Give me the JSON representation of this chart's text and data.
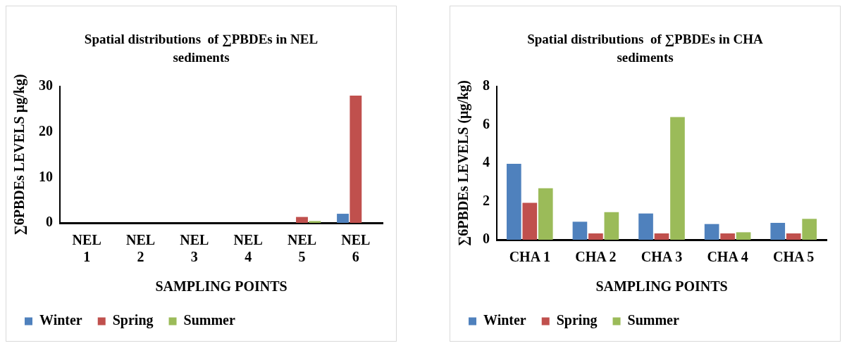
{
  "chart_data": [
    {
      "type": "bar",
      "title": "Spatial distributions  of ∑PBDEs in NEL sediments",
      "xlabel": "SAMPLING POINTS",
      "ylabel": "∑6PBDEs LEVELS µg/kg)",
      "categories": [
        "NEL 1",
        "NEL 2",
        "NEL 3",
        "NEL 4",
        "NEL 5",
        "NEL 6"
      ],
      "series": [
        {
          "name": "Winter",
          "color": "#4f81bd",
          "values": [
            0,
            0,
            0,
            0,
            0,
            2
          ]
        },
        {
          "name": "Spring",
          "color": "#c0504d",
          "values": [
            0,
            0,
            0,
            0,
            1.3,
            28
          ]
        },
        {
          "name": "Summer",
          "color": "#9bbb59",
          "values": [
            0,
            0,
            0,
            0,
            0.4,
            0
          ]
        }
      ],
      "ylim": [
        0,
        30
      ],
      "yticks": [
        0,
        10,
        20,
        30
      ],
      "grid": false,
      "legend": "bottom"
    },
    {
      "type": "bar",
      "title": "Spatial distributions  of ∑PBDEs in CHA sediments",
      "xlabel": "SAMPLING POINTS",
      "ylabel": "∑6PBDEs LEVELS (µg/kg)",
      "categories": [
        "CHA 1",
        "CHA 2",
        "CHA 3",
        "CHA 4",
        "CHA 5"
      ],
      "series": [
        {
          "name": "Winter",
          "color": "#4f81bd",
          "values": [
            3.96,
            0.94,
            1.37,
            0.82,
            0.88
          ]
        },
        {
          "name": "Spring",
          "color": "#c0504d",
          "values": [
            1.93,
            0.33,
            0.33,
            0.33,
            0.33
          ]
        },
        {
          "name": "Summer",
          "color": "#9bbb59",
          "values": [
            2.69,
            1.44,
            6.4,
            0.39,
            1.09
          ]
        }
      ],
      "ylim": [
        0,
        8
      ],
      "yticks": [
        0,
        2,
        4,
        6,
        8
      ],
      "grid": false,
      "legend": "bottom"
    }
  ]
}
